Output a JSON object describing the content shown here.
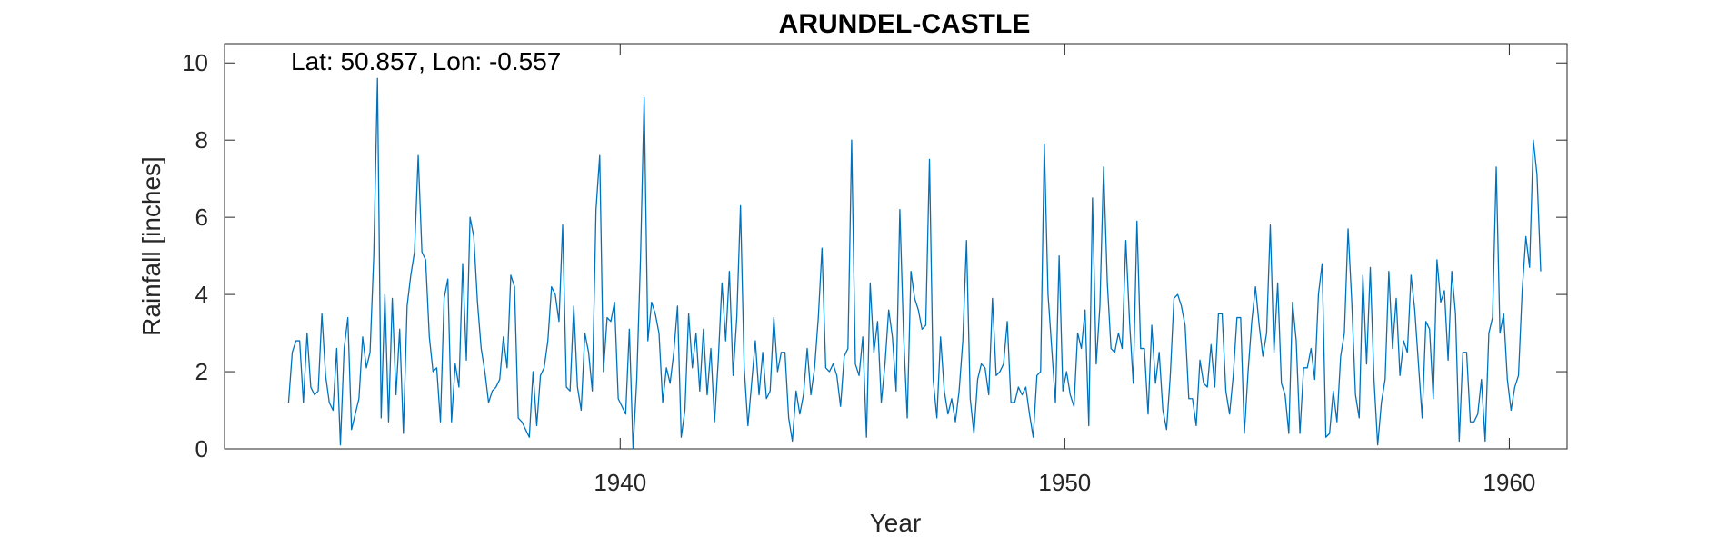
{
  "chart_data": {
    "type": "line",
    "title": "ARUNDEL-CASTLE",
    "xlabel": "Year",
    "ylabel": "Rainfall [inches]",
    "annotation": "Lat: 50.857, Lon: -0.557",
    "xlim": [
      1931.1,
      1961.3
    ],
    "ylim": [
      0,
      10.5
    ],
    "xticks": [
      1940,
      1950,
      1960
    ],
    "yticks": [
      0,
      2,
      4,
      6,
      8,
      10
    ],
    "grid": false,
    "line_color": "#0072BD",
    "series": [
      {
        "x_start": 1932.54,
        "x_step": 0.0833333,
        "values": [
          1.2,
          2.5,
          2.8,
          2.8,
          1.2,
          3.0,
          1.6,
          1.4,
          1.5,
          3.5,
          1.9,
          1.2,
          1.0,
          2.6,
          0.1,
          2.6,
          3.4,
          0.5,
          0.9,
          1.3,
          2.9,
          2.1,
          2.5,
          5.0,
          9.6,
          0.8,
          4.0,
          0.7,
          3.9,
          1.4,
          3.1,
          0.4,
          3.7,
          4.5,
          5.1,
          7.6,
          5.1,
          4.9,
          2.9,
          2.0,
          2.1,
          0.7,
          3.9,
          4.4,
          0.7,
          2.2,
          1.6,
          4.8,
          2.3,
          6.0,
          5.5,
          3.8,
          2.6,
          2.0,
          1.2,
          1.5,
          1.6,
          1.8,
          2.9,
          2.1,
          4.5,
          4.2,
          0.8,
          0.7,
          0.5,
          0.3,
          2.0,
          0.6,
          1.9,
          2.1,
          2.8,
          4.2,
          4.0,
          3.3,
          5.8,
          1.6,
          1.5,
          3.7,
          1.6,
          1.0,
          3.0,
          2.5,
          1.5,
          6.2,
          7.6,
          2.0,
          3.4,
          3.3,
          3.8,
          1.3,
          1.1,
          0.9,
          3.1,
          0.0,
          1.8,
          4.9,
          9.1,
          2.8,
          3.8,
          3.5,
          3.0,
          1.2,
          2.1,
          1.7,
          2.5,
          3.7,
          0.3,
          1.0,
          3.5,
          2.1,
          3.0,
          1.5,
          3.1,
          1.4,
          2.6,
          0.7,
          2.3,
          4.3,
          2.8,
          4.6,
          1.9,
          3.4,
          6.3,
          2.1,
          0.6,
          1.7,
          2.8,
          1.4,
          2.5,
          1.3,
          1.5,
          3.4,
          2.0,
          2.5,
          2.5,
          0.8,
          0.2,
          1.5,
          0.9,
          1.4,
          2.6,
          1.4,
          2.1,
          3.4,
          5.2,
          2.1,
          2.0,
          2.2,
          1.9,
          1.1,
          2.4,
          2.6,
          8.0,
          2.2,
          1.9,
          2.9,
          0.3,
          4.3,
          2.5,
          3.3,
          1.2,
          2.2,
          3.6,
          2.9,
          1.5,
          6.2,
          3.0,
          0.8,
          4.6,
          3.9,
          3.6,
          3.1,
          3.2,
          7.5,
          1.8,
          0.8,
          2.9,
          1.5,
          0.9,
          1.3,
          0.7,
          1.5,
          2.8,
          5.4,
          1.3,
          0.4,
          1.8,
          2.2,
          2.1,
          1.4,
          3.9,
          1.9,
          2.0,
          2.2,
          3.3,
          1.2,
          1.2,
          1.6,
          1.4,
          1.6,
          0.9,
          0.3,
          1.9,
          2.0,
          7.9,
          4.0,
          2.6,
          1.2,
          5.0,
          1.5,
          2.0,
          1.4,
          1.1,
          3.0,
          2.6,
          3.6,
          0.6,
          6.5,
          2.2,
          3.7,
          7.3,
          4.3,
          2.6,
          2.5,
          3.0,
          2.6,
          5.4,
          3.3,
          1.7,
          5.9,
          2.6,
          2.6,
          0.9,
          3.2,
          1.7,
          2.5,
          1.0,
          0.5,
          1.9,
          3.9,
          4.0,
          3.7,
          3.2,
          1.3,
          1.3,
          0.6,
          2.3,
          1.7,
          1.6,
          2.7,
          1.6,
          3.5,
          3.5,
          1.5,
          0.9,
          1.9,
          3.4,
          3.4,
          0.4,
          2.0,
          3.3,
          4.2,
          3.2,
          2.4,
          3.0,
          5.8,
          2.5,
          4.3,
          1.7,
          1.4,
          0.4,
          3.8,
          2.8,
          0.4,
          2.1,
          2.1,
          2.6,
          1.8,
          4.0,
          4.8,
          0.3,
          0.4,
          1.5,
          0.7,
          2.4,
          3.0,
          5.7,
          3.8,
          1.4,
          0.8,
          4.5,
          2.2,
          4.7,
          1.8,
          0.1,
          1.2,
          1.8,
          4.6,
          2.6,
          3.9,
          1.9,
          2.8,
          2.5,
          4.5,
          3.6,
          2.2,
          0.8,
          3.3,
          3.1,
          1.3,
          4.9,
          3.8,
          4.1,
          2.3,
          4.6,
          3.5,
          0.2,
          2.5,
          2.5,
          0.7,
          0.7,
          0.9,
          1.8,
          0.2,
          3.0,
          3.4,
          7.3,
          3.0,
          3.5,
          1.8,
          1.0,
          1.6,
          1.9,
          4.1,
          5.5,
          4.7,
          8.0,
          7.1,
          4.6
        ]
      }
    ]
  }
}
